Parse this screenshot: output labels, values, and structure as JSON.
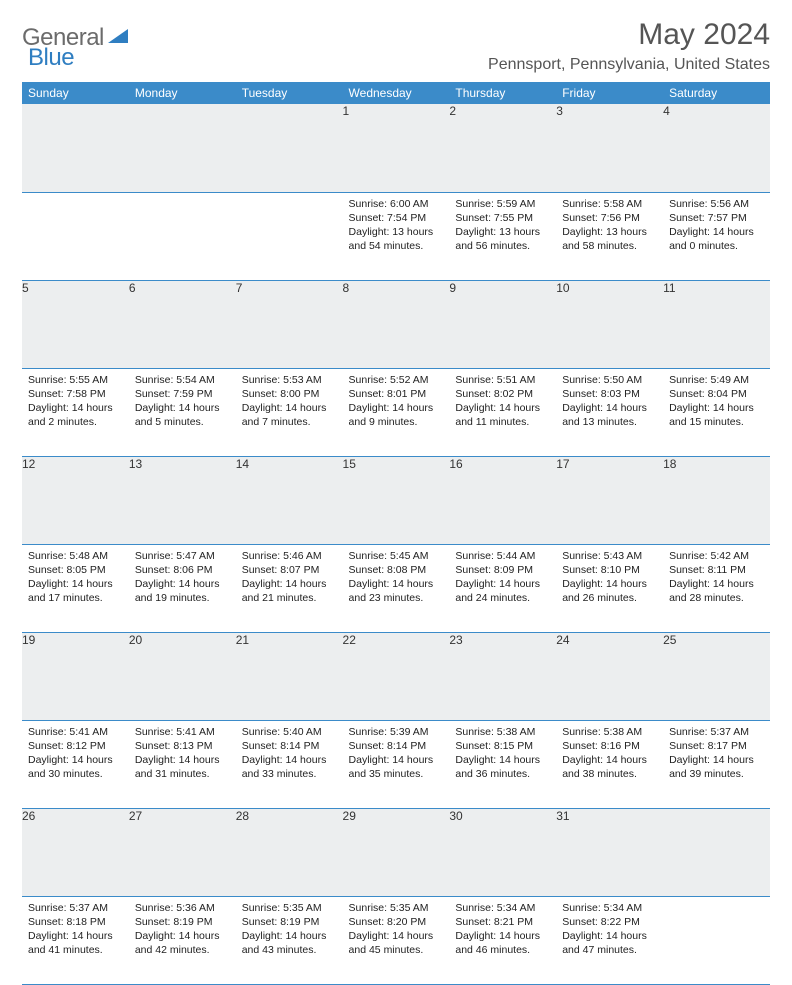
{
  "logo": {
    "part1": "General",
    "part2": "Blue"
  },
  "title": "May 2024",
  "location": "Pennsport, Pennsylvania, United States",
  "colors": {
    "header_bg": "#3b8bc9",
    "header_text": "#ffffff",
    "daynum_bg": "#eceeef",
    "border": "#3b8bc9",
    "logo_gray": "#6b6b6b",
    "logo_blue": "#2f7ec1"
  },
  "dayHeaders": [
    "Sunday",
    "Monday",
    "Tuesday",
    "Wednesday",
    "Thursday",
    "Friday",
    "Saturday"
  ],
  "weeks": [
    [
      null,
      null,
      null,
      {
        "n": "1",
        "sr": "6:00 AM",
        "ss": "7:54 PM",
        "dl": "13 hours and 54 minutes."
      },
      {
        "n": "2",
        "sr": "5:59 AM",
        "ss": "7:55 PM",
        "dl": "13 hours and 56 minutes."
      },
      {
        "n": "3",
        "sr": "5:58 AM",
        "ss": "7:56 PM",
        "dl": "13 hours and 58 minutes."
      },
      {
        "n": "4",
        "sr": "5:56 AM",
        "ss": "7:57 PM",
        "dl": "14 hours and 0 minutes."
      }
    ],
    [
      {
        "n": "5",
        "sr": "5:55 AM",
        "ss": "7:58 PM",
        "dl": "14 hours and 2 minutes."
      },
      {
        "n": "6",
        "sr": "5:54 AM",
        "ss": "7:59 PM",
        "dl": "14 hours and 5 minutes."
      },
      {
        "n": "7",
        "sr": "5:53 AM",
        "ss": "8:00 PM",
        "dl": "14 hours and 7 minutes."
      },
      {
        "n": "8",
        "sr": "5:52 AM",
        "ss": "8:01 PM",
        "dl": "14 hours and 9 minutes."
      },
      {
        "n": "9",
        "sr": "5:51 AM",
        "ss": "8:02 PM",
        "dl": "14 hours and 11 minutes."
      },
      {
        "n": "10",
        "sr": "5:50 AM",
        "ss": "8:03 PM",
        "dl": "14 hours and 13 minutes."
      },
      {
        "n": "11",
        "sr": "5:49 AM",
        "ss": "8:04 PM",
        "dl": "14 hours and 15 minutes."
      }
    ],
    [
      {
        "n": "12",
        "sr": "5:48 AM",
        "ss": "8:05 PM",
        "dl": "14 hours and 17 minutes."
      },
      {
        "n": "13",
        "sr": "5:47 AM",
        "ss": "8:06 PM",
        "dl": "14 hours and 19 minutes."
      },
      {
        "n": "14",
        "sr": "5:46 AM",
        "ss": "8:07 PM",
        "dl": "14 hours and 21 minutes."
      },
      {
        "n": "15",
        "sr": "5:45 AM",
        "ss": "8:08 PM",
        "dl": "14 hours and 23 minutes."
      },
      {
        "n": "16",
        "sr": "5:44 AM",
        "ss": "8:09 PM",
        "dl": "14 hours and 24 minutes."
      },
      {
        "n": "17",
        "sr": "5:43 AM",
        "ss": "8:10 PM",
        "dl": "14 hours and 26 minutes."
      },
      {
        "n": "18",
        "sr": "5:42 AM",
        "ss": "8:11 PM",
        "dl": "14 hours and 28 minutes."
      }
    ],
    [
      {
        "n": "19",
        "sr": "5:41 AM",
        "ss": "8:12 PM",
        "dl": "14 hours and 30 minutes."
      },
      {
        "n": "20",
        "sr": "5:41 AM",
        "ss": "8:13 PM",
        "dl": "14 hours and 31 minutes."
      },
      {
        "n": "21",
        "sr": "5:40 AM",
        "ss": "8:14 PM",
        "dl": "14 hours and 33 minutes."
      },
      {
        "n": "22",
        "sr": "5:39 AM",
        "ss": "8:14 PM",
        "dl": "14 hours and 35 minutes."
      },
      {
        "n": "23",
        "sr": "5:38 AM",
        "ss": "8:15 PM",
        "dl": "14 hours and 36 minutes."
      },
      {
        "n": "24",
        "sr": "5:38 AM",
        "ss": "8:16 PM",
        "dl": "14 hours and 38 minutes."
      },
      {
        "n": "25",
        "sr": "5:37 AM",
        "ss": "8:17 PM",
        "dl": "14 hours and 39 minutes."
      }
    ],
    [
      {
        "n": "26",
        "sr": "5:37 AM",
        "ss": "8:18 PM",
        "dl": "14 hours and 41 minutes."
      },
      {
        "n": "27",
        "sr": "5:36 AM",
        "ss": "8:19 PM",
        "dl": "14 hours and 42 minutes."
      },
      {
        "n": "28",
        "sr": "5:35 AM",
        "ss": "8:19 PM",
        "dl": "14 hours and 43 minutes."
      },
      {
        "n": "29",
        "sr": "5:35 AM",
        "ss": "8:20 PM",
        "dl": "14 hours and 45 minutes."
      },
      {
        "n": "30",
        "sr": "5:34 AM",
        "ss": "8:21 PM",
        "dl": "14 hours and 46 minutes."
      },
      {
        "n": "31",
        "sr": "5:34 AM",
        "ss": "8:22 PM",
        "dl": "14 hours and 47 minutes."
      },
      null
    ]
  ],
  "labels": {
    "sunrise": "Sunrise:",
    "sunset": "Sunset:",
    "daylight": "Daylight:"
  }
}
